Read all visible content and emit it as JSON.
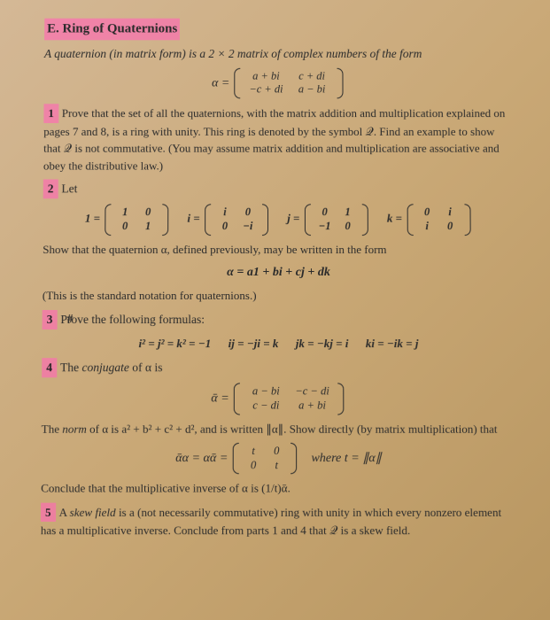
{
  "title": "E. Ring of Quaternions",
  "intro": "A quaternion (in matrix form) is a 2 × 2 matrix of complex numbers of the form",
  "alpha_def": {
    "lhs": "α =",
    "r1c1": "a + bi",
    "r1c2": "c + di",
    "r2c1": "−c + di",
    "r2c2": "a − bi"
  },
  "p1": {
    "num": "1",
    "text": "Prove that the set of all the quaternions, with the matrix addition and multiplication explained on pages 7 and 8, is a ring with unity. This ring is denoted by the symbol 𝒬. Find an example to show that 𝒬 is not commutative. (You may assume matrix addition and multiplication are associative and obey the distributive law.)"
  },
  "p2": {
    "num": "2",
    "lead": "Let",
    "one": {
      "label": "1 =",
      "r1c1": "1",
      "r1c2": "0",
      "r2c1": "0",
      "r2c2": "1"
    },
    "i": {
      "label": "i =",
      "r1c1": "i",
      "r1c2": "0",
      "r2c1": "0",
      "r2c2": "−i"
    },
    "j": {
      "label": "j =",
      "r1c1": "0",
      "r1c2": "1",
      "r2c1": "−1",
      "r2c2": "0"
    },
    "k": {
      "label": "k =",
      "r1c1": "0",
      "r1c2": "i",
      "r2c1": "i",
      "r2c2": "0"
    },
    "after": "Show that the quaternion α, defined previously, may be written in the form",
    "form": "α = a1 + bi + cj + dk",
    "note": "(This is the standard notation for quaternions.)"
  },
  "p3": {
    "num": "3",
    "lead": "Prove the following formulas:",
    "f1": "i² = j² = k² = −1",
    "f2": "ij = −ji = k",
    "f3": "jk = −kj = i",
    "f4": "ki = −ik = j"
  },
  "p4": {
    "num": "4",
    "lead_a": "The ",
    "lead_b": "conjugate",
    "lead_c": " of α is",
    "conj": {
      "lhs": "ᾱ =",
      "r1c1": "a − bi",
      "r1c2": "−c − di",
      "r2c1": "c − di",
      "r2c2": "a + bi"
    },
    "norm_a": "The ",
    "norm_b": "norm",
    "norm_c": " of α is a² + b² + c² + d², and is written ∥α∥. Show directly (by matrix multiplication) that",
    "prod": {
      "lhs": "ᾱα = αᾱ =",
      "r1c1": "t",
      "r1c2": "0",
      "r2c1": "0",
      "r2c2": "t",
      "where": "where t = ∥α∥"
    },
    "conclude": "Conclude that the multiplicative inverse of α is (1/t)ᾱ."
  },
  "p5": {
    "num": "5",
    "text_a": "A ",
    "text_b": "skew field",
    "text_c": " is a (not necessarily commutative) ring with unity in which every nonzero element has a multiplicative inverse. Conclude from parts 1 and 4 that 𝒬 is a skew field."
  }
}
